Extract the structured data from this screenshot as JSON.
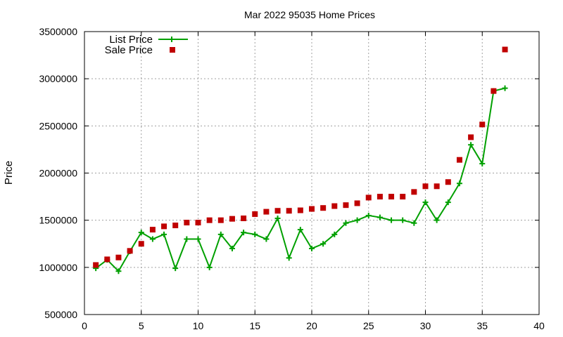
{
  "chart_data": {
    "type": "line",
    "title": "Mar 2022 95035 Home Prices",
    "xlabel": "",
    "ylabel": "Price",
    "xlim": [
      0,
      40
    ],
    "ylim": [
      500000,
      3500000
    ],
    "x_ticks": [
      0,
      5,
      10,
      15,
      20,
      25,
      30,
      35,
      40
    ],
    "y_ticks": [
      500000,
      1000000,
      1500000,
      2000000,
      2500000,
      3000000,
      3500000
    ],
    "grid": true,
    "legend_position": "top-left",
    "series": [
      {
        "name": "List Price",
        "style": "line-points",
        "color": "#00a000",
        "marker": "plus",
        "x": [
          1,
          2,
          3,
          4,
          5,
          6,
          7,
          8,
          9,
          10,
          11,
          12,
          13,
          14,
          15,
          16,
          17,
          18,
          19,
          20,
          21,
          22,
          23,
          24,
          25,
          26,
          27,
          28,
          29,
          30,
          31,
          32,
          33,
          34,
          35,
          36,
          37
        ],
        "y": [
          990000,
          1080000,
          960000,
          1170000,
          1370000,
          1300000,
          1350000,
          990000,
          1300000,
          1300000,
          1000000,
          1350000,
          1200000,
          1370000,
          1350000,
          1300000,
          1520000,
          1100000,
          1400000,
          1200000,
          1250000,
          1350000,
          1470000,
          1500000,
          1550000,
          1530000,
          1500000,
          1500000,
          1470000,
          1690000,
          1500000,
          1690000,
          1890000,
          2300000,
          2100000,
          2870000,
          2900000
        ]
      },
      {
        "name": "Sale Price",
        "style": "points",
        "color": "#c00000",
        "marker": "square",
        "x": [
          1,
          2,
          3,
          4,
          5,
          6,
          7,
          8,
          9,
          10,
          11,
          12,
          13,
          14,
          15,
          16,
          17,
          18,
          19,
          20,
          21,
          22,
          23,
          24,
          25,
          26,
          27,
          28,
          29,
          30,
          31,
          32,
          33,
          34,
          35,
          36,
          37
        ],
        "y": [
          1025000,
          1085000,
          1105000,
          1175000,
          1250000,
          1400000,
          1435000,
          1445000,
          1475000,
          1475000,
          1500000,
          1500000,
          1515000,
          1520000,
          1565000,
          1590000,
          1600000,
          1600000,
          1605000,
          1620000,
          1630000,
          1650000,
          1660000,
          1680000,
          1740000,
          1750000,
          1750000,
          1750000,
          1800000,
          1860000,
          1860000,
          1905000,
          2140000,
          2380000,
          2515000,
          2870000,
          3310000
        ]
      }
    ]
  }
}
